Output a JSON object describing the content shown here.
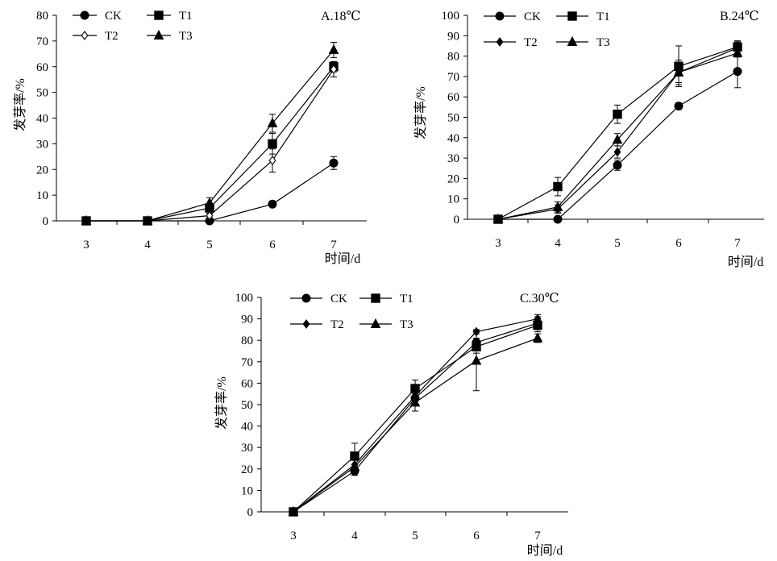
{
  "chart_data": [
    {
      "type": "line",
      "panel_label": "A.18℃",
      "xlabel": "时间/d",
      "ylabel": "发芽率/%",
      "categories": [
        "3",
        "4",
        "5",
        "6",
        "7"
      ],
      "ylim": [
        0,
        80
      ],
      "yticks": [
        0,
        10,
        20,
        30,
        40,
        50,
        60,
        70,
        80
      ],
      "grid": false,
      "legend_position": "top-left",
      "series": [
        {
          "name": "CK",
          "marker": "circle-filled",
          "values": [
            0,
            0,
            0,
            6.5,
            22.5
          ],
          "errors": [
            0,
            0,
            0.3,
            1.0,
            2.5
          ]
        },
        {
          "name": "T1",
          "marker": "square-filled",
          "values": [
            0,
            0,
            5,
            30,
            60
          ],
          "errors": [
            0,
            0,
            1.5,
            4,
            2
          ]
        },
        {
          "name": "T2",
          "marker": "diamond-open",
          "values": [
            0,
            0,
            2,
            23.5,
            59
          ],
          "errors": [
            0,
            0,
            1,
            4.5,
            3
          ]
        },
        {
          "name": "T3",
          "marker": "triangle-filled",
          "values": [
            0,
            0,
            7,
            38,
            66.5
          ],
          "errors": [
            0,
            0,
            2,
            3.5,
            3
          ]
        }
      ]
    },
    {
      "type": "line",
      "panel_label": "B.24℃",
      "xlabel": "时间/d",
      "ylabel": "发芽率/%",
      "categories": [
        "3",
        "4",
        "5",
        "6",
        "7"
      ],
      "ylim": [
        0,
        100
      ],
      "yticks": [
        0,
        10,
        20,
        30,
        40,
        50,
        60,
        70,
        80,
        90,
        100
      ],
      "grid": false,
      "legend_position": "top-left",
      "series": [
        {
          "name": "CK",
          "marker": "circle-filled",
          "values": [
            0,
            0,
            26.5,
            55.5,
            72.5
          ],
          "errors": [
            0,
            0,
            2.5,
            1.5,
            8
          ]
        },
        {
          "name": "T1",
          "marker": "square-filled",
          "values": [
            0,
            16,
            51.5,
            75,
            84.5
          ],
          "errors": [
            0,
            4.5,
            4.5,
            10,
            3
          ]
        },
        {
          "name": "T2",
          "marker": "diamond-filled",
          "values": [
            0,
            5,
            33,
            72,
            84
          ],
          "errors": [
            0,
            2,
            3,
            6,
            3
          ]
        },
        {
          "name": "T3",
          "marker": "triangle-filled",
          "values": [
            0,
            6,
            39,
            72,
            81.5
          ],
          "errors": [
            0,
            2.5,
            3,
            5,
            2
          ]
        }
      ]
    },
    {
      "type": "line",
      "panel_label": "C.30℃",
      "xlabel": "时间/d",
      "ylabel": "发芽率/%",
      "categories": [
        "3",
        "4",
        "5",
        "6",
        "7"
      ],
      "ylim": [
        0,
        100
      ],
      "yticks": [
        0,
        10,
        20,
        30,
        40,
        50,
        60,
        70,
        80,
        90,
        100
      ],
      "grid": false,
      "legend_position": "top-left",
      "series": [
        {
          "name": "CK",
          "marker": "circle-filled",
          "values": [
            0,
            19,
            53,
            79,
            88
          ],
          "errors": [
            0,
            2,
            3,
            2,
            3
          ]
        },
        {
          "name": "T1",
          "marker": "square-filled",
          "values": [
            0,
            26,
            57.5,
            77,
            87
          ],
          "errors": [
            0,
            6,
            4,
            3,
            3
          ]
        },
        {
          "name": "T2",
          "marker": "diamond-filled",
          "values": [
            0,
            22,
            54,
            84,
            90
          ],
          "errors": [
            0,
            3,
            4,
            1,
            2
          ]
        },
        {
          "name": "T3",
          "marker": "triangle-filled",
          "values": [
            0,
            21,
            51,
            70.5,
            81
          ],
          "errors": [
            0,
            3,
            4,
            14,
            2
          ]
        }
      ]
    }
  ]
}
